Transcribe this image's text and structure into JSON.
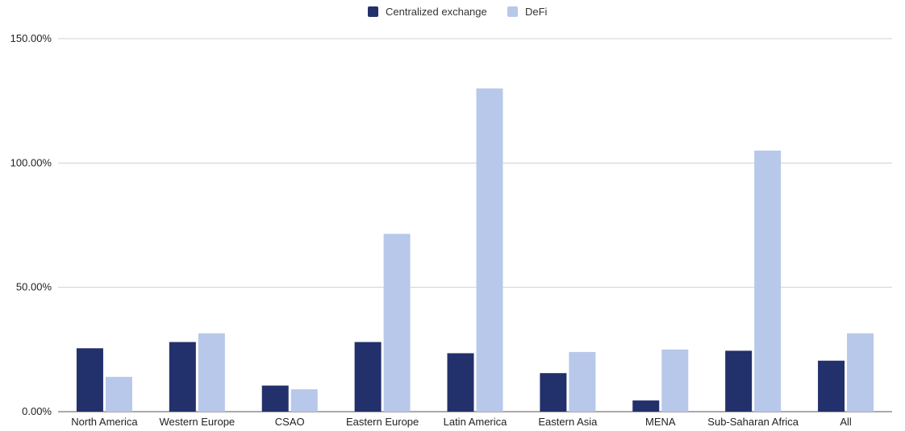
{
  "chart_data": {
    "type": "bar",
    "categories": [
      "North America",
      "Western Europe",
      "CSAO",
      "Eastern Europe",
      "Latin America",
      "Eastern Asia",
      "MENA",
      "Sub-Saharan Africa",
      "All"
    ],
    "series": [
      {
        "name": "Centralized exchange",
        "color": "#22306b",
        "values": [
          25.5,
          28.0,
          10.5,
          28.0,
          23.5,
          15.5,
          4.5,
          24.5,
          20.5
        ]
      },
      {
        "name": "DeFi",
        "color": "#b8c8ea",
        "values": [
          14.0,
          31.5,
          9.0,
          71.5,
          130.0,
          24.0,
          25.0,
          105.0,
          31.5
        ]
      }
    ],
    "yticks": [
      "0.00%",
      "50.00%",
      "100.00%",
      "150.00%"
    ],
    "ytick_values": [
      0,
      50,
      100,
      150
    ],
    "ylim": [
      0,
      150
    ],
    "title": "",
    "xlabel": "",
    "ylabel": "",
    "legend_position": "top-center",
    "grid": true,
    "gridline_color": "#d0d0d0"
  }
}
